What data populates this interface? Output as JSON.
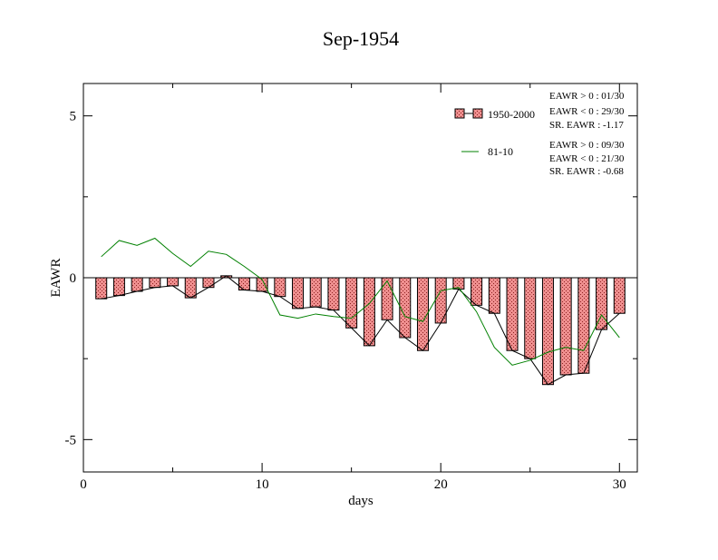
{
  "chart_data": {
    "type": "bar",
    "title": "Sep-1954",
    "xlabel": "days",
    "ylabel": "EAWR",
    "xlim": [
      0,
      31
    ],
    "ylim": [
      -6,
      6
    ],
    "x_ticks": [
      0,
      10,
      20,
      30
    ],
    "y_ticks": [
      5,
      0,
      -5
    ],
    "x_tick_labels": [
      "0",
      "10",
      "20",
      "30"
    ],
    "y_tick_labels": [
      "5",
      "0",
      "-5"
    ],
    "grid": false,
    "legend_position": "top-right",
    "x": [
      1,
      2,
      3,
      4,
      5,
      6,
      7,
      8,
      9,
      10,
      11,
      12,
      13,
      14,
      15,
      16,
      17,
      18,
      19,
      20,
      21,
      22,
      23,
      24,
      25,
      26,
      27,
      28,
      29,
      30
    ],
    "series": [
      {
        "name": "1950-2000",
        "kind": "bar",
        "color": "#e06666",
        "values": [
          -0.65,
          -0.55,
          -0.42,
          -0.3,
          -0.25,
          -0.62,
          -0.3,
          0.06,
          -0.38,
          -0.42,
          -0.58,
          -0.95,
          -0.9,
          -1.0,
          -1.55,
          -2.1,
          -1.3,
          -1.85,
          -2.25,
          -1.4,
          -0.35,
          -0.85,
          -1.1,
          -2.25,
          -2.5,
          -3.3,
          -3.0,
          -2.95,
          -1.6,
          -1.1
        ],
        "stats": [
          "EAWR > 0 : 01/30",
          "EAWR < 0 : 29/30",
          "SR. EAWR : -1.17"
        ]
      },
      {
        "name": "81-10",
        "kind": "line",
        "color": "#008000",
        "values": [
          0.65,
          1.15,
          1.0,
          1.22,
          0.75,
          0.35,
          0.82,
          0.72,
          0.35,
          -0.05,
          -1.15,
          -1.25,
          -1.12,
          -1.2,
          -1.25,
          -0.8,
          -0.1,
          -1.2,
          -1.35,
          -0.4,
          -0.3,
          -1.05,
          -2.15,
          -2.7,
          -2.55,
          -2.3,
          -2.15,
          -2.25,
          -1.15,
          -1.85
        ],
        "stats": [
          "EAWR > 0 : 09/30",
          "EAWR < 0 : 21/30",
          "SR. EAWR : -0.68"
        ]
      }
    ]
  }
}
